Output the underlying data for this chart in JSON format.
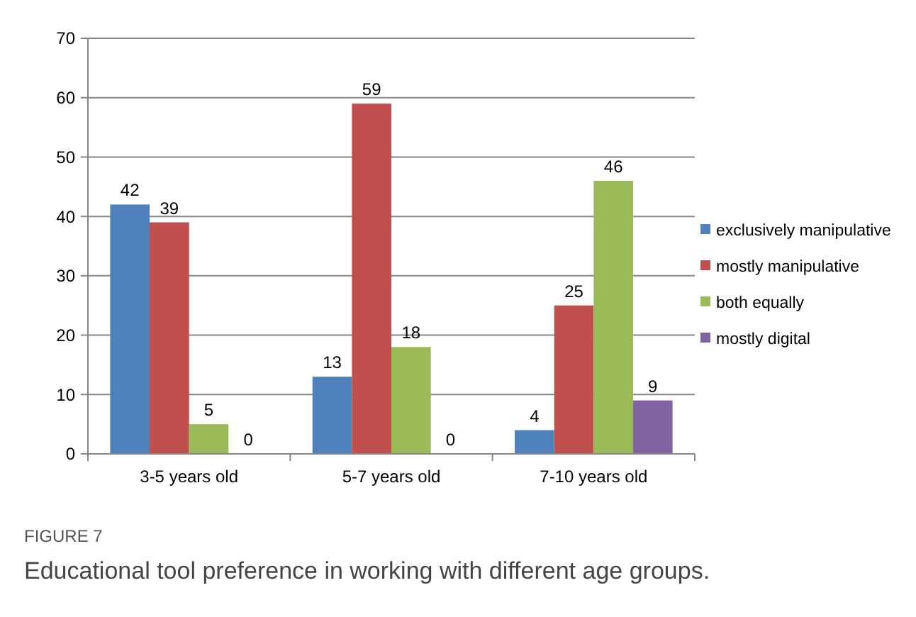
{
  "chart_data": {
    "type": "bar",
    "categories": [
      "3-5 years old",
      "5-7 years old",
      "7-10 years old"
    ],
    "series": [
      {
        "name": "exclusively manipulative",
        "color": "#4f81bd",
        "values": [
          42,
          13,
          4
        ]
      },
      {
        "name": "mostly manipulative",
        "color": "#c0504d",
        "values": [
          39,
          59,
          25
        ]
      },
      {
        "name": "both equally",
        "color": "#9bbb59",
        "values": [
          5,
          18,
          46
        ]
      },
      {
        "name": "mostly digital",
        "color": "#8064a2",
        "values": [
          0,
          0,
          9
        ]
      }
    ],
    "ylim": [
      0,
      70
    ],
    "yticks": [
      0,
      10,
      20,
      30,
      40,
      50,
      60,
      70
    ],
    "grid": "y",
    "legend": "right",
    "data_labels": true,
    "annotations": [
      "FIGURE 7",
      "Educational tool preference in working with different age groups."
    ]
  }
}
